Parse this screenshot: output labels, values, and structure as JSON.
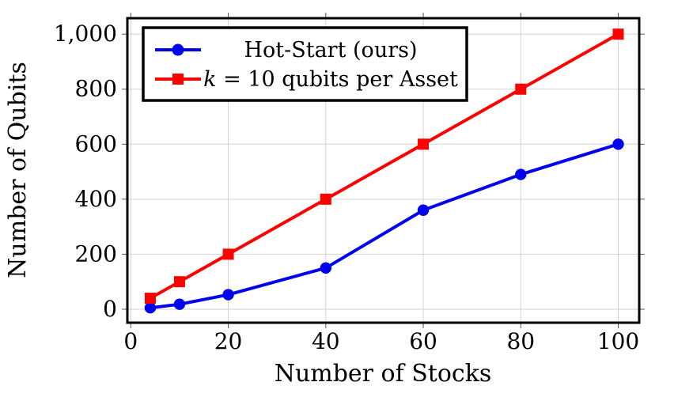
{
  "chart_data": {
    "type": "line",
    "title": "",
    "xlabel": "Number of Stocks",
    "ylabel": "Number of Qubits",
    "xlim": [
      -0.7,
      104.3
    ],
    "ylim": [
      -49,
      1058
    ],
    "grid": true,
    "xticks": {
      "values": [
        0,
        20,
        40,
        60,
        80,
        100
      ],
      "labels": [
        "0",
        "20",
        "40",
        "60",
        "80",
        "100"
      ]
    },
    "yticks": {
      "values": [
        0,
        200,
        400,
        600,
        800,
        1000
      ],
      "labels": [
        "0",
        "200",
        "400",
        "600",
        "800",
        "1,000"
      ]
    },
    "legend": {
      "position": "top-left",
      "items": [
        {
          "label": "Hot-Start (ours)",
          "color": "#0000ee",
          "marker": "circle"
        },
        {
          "label_italic": "k",
          "label_rest": " = 10 qubits per Asset",
          "color": "#ff0000",
          "marker": "square"
        }
      ]
    },
    "series": [
      {
        "name": "Hot-Start (ours)",
        "color": "#0000ee",
        "marker": "circle",
        "x": [
          4,
          10,
          20,
          40,
          60,
          80,
          100
        ],
        "y": [
          5,
          18,
          53,
          150,
          360,
          490,
          600
        ]
      },
      {
        "name": "k = 10 qubits per Asset",
        "color": "#ff0000",
        "marker": "square",
        "x": [
          4,
          10,
          20,
          40,
          60,
          80,
          100
        ],
        "y": [
          40,
          100,
          200,
          400,
          600,
          800,
          1000
        ]
      }
    ],
    "colors": {
      "grid": "#d2d2d2",
      "tick": "#555555",
      "axis": "#000000",
      "background": "#ffffff",
      "blue_series": "#0000ee",
      "red_series": "#ff0000"
    }
  }
}
